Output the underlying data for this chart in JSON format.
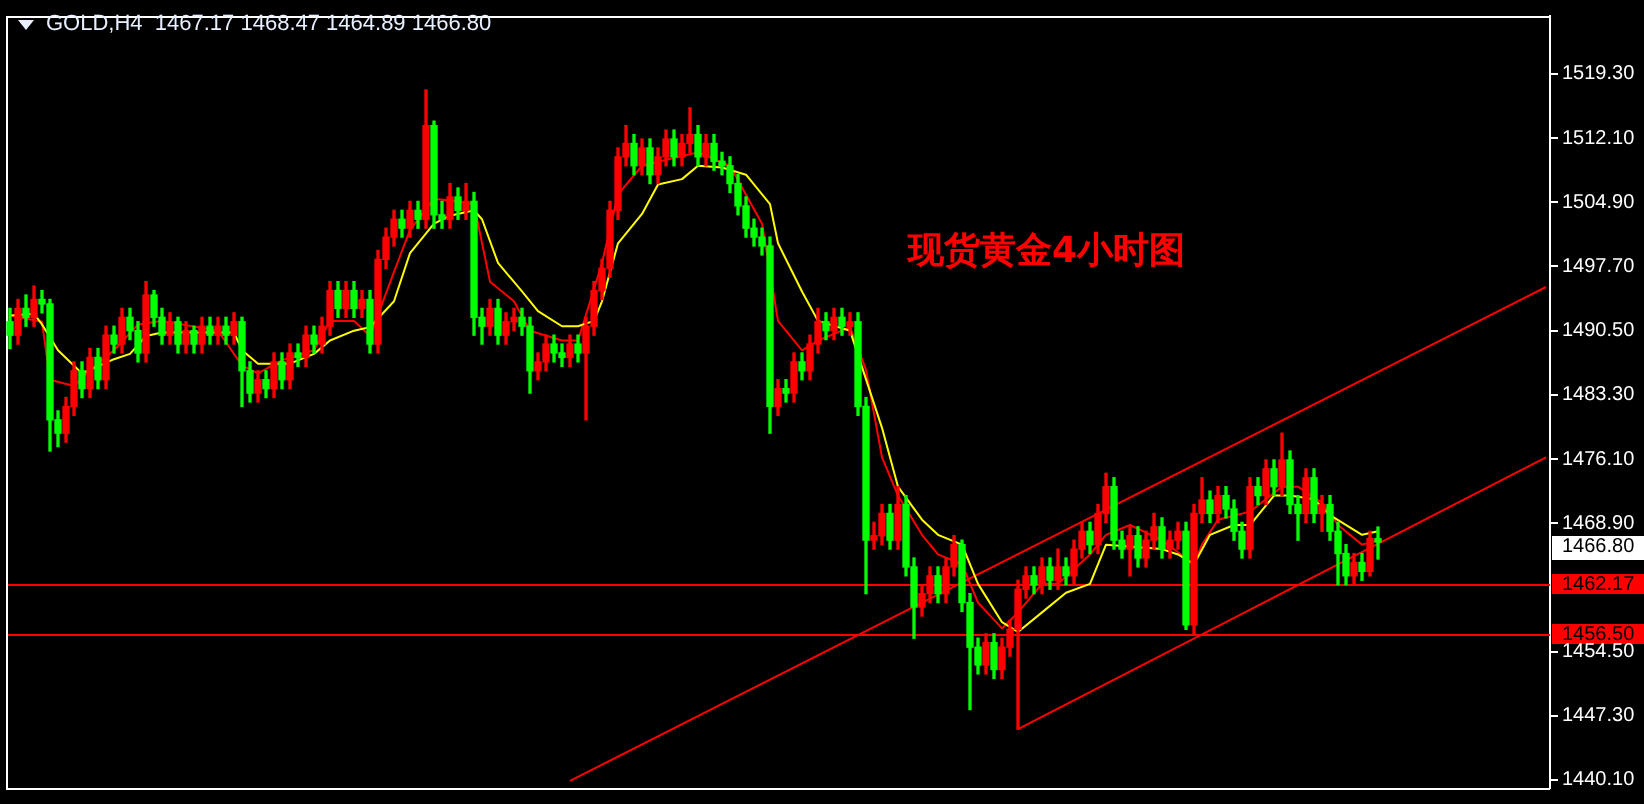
{
  "chart_data": {
    "type": "candlestick",
    "title": "GOLD,H4  1467.17 1468.47 1464.89 1466.80",
    "annotations": [
      "现货黄金4小时图",
      "1466.80"
    ],
    "ylim": [
      1439.2,
      1525.8
    ],
    "yticks": [
      {
        "value": 1519.3,
        "label": "1519.30"
      },
      {
        "value": 1512.1,
        "label": "1512.10"
      },
      {
        "value": 1504.9,
        "label": "1504.90"
      },
      {
        "value": 1497.7,
        "label": "1497.70"
      },
      {
        "value": 1490.5,
        "label": "1490.50"
      },
      {
        "value": 1483.3,
        "label": "1483.30"
      },
      {
        "value": 1476.1,
        "label": "1476.10"
      },
      {
        "value": 1468.9,
        "label": "1468.90"
      },
      {
        "value": 1454.5,
        "label": "1454.50"
      },
      {
        "value": 1447.3,
        "label": "1447.30"
      },
      {
        "value": 1440.1,
        "label": "1440.10"
      }
    ],
    "tick_labels": "y",
    "categories": [
      null,
      null,
      null,
      null,
      null,
      null,
      null,
      null,
      null,
      null,
      null,
      null,
      null,
      null,
      null,
      null,
      null,
      null,
      null,
      null,
      null,
      null,
      null,
      null,
      null,
      null,
      null,
      null,
      null,
      null,
      null,
      null,
      null,
      null,
      null,
      null,
      null,
      null,
      null,
      null,
      null,
      null,
      null,
      null,
      null,
      null,
      null,
      null,
      null,
      null,
      null,
      null,
      null,
      null,
      null,
      null,
      null,
      null,
      null,
      null,
      null,
      null,
      null,
      null,
      null,
      null,
      null,
      null,
      null,
      null,
      null,
      null,
      null,
      null,
      null,
      null,
      null,
      null,
      null,
      null,
      null,
      null,
      null,
      null,
      null,
      null,
      null,
      null,
      null,
      null,
      null,
      null,
      null,
      null,
      null,
      null,
      null,
      null,
      null,
      null,
      null,
      null,
      null,
      null,
      null,
      null,
      null,
      null,
      null,
      null,
      null,
      null,
      null,
      null,
      null,
      null,
      null,
      null,
      null,
      null,
      null,
      null,
      null,
      null,
      null,
      null,
      null,
      null,
      null,
      null,
      null,
      null,
      null,
      null,
      null,
      null,
      null,
      null,
      null,
      null,
      null,
      null,
      null,
      null,
      null,
      null,
      null,
      null,
      null,
      null,
      null,
      null,
      null,
      null,
      null,
      null,
      null,
      null,
      null,
      null,
      null,
      null,
      null,
      null,
      null,
      null,
      null,
      null,
      null,
      null,
      null,
      null,
      null,
      null,
      null,
      null,
      null,
      null,
      null,
      null,
      null,
      null,
      null,
      null,
      null,
      null,
      null,
      null,
      null,
      null,
      null,
      null,
      null
    ],
    "ohlc": [
      [
        1491.5,
        1493,
        1488.5,
        1490
      ],
      [
        1490,
        1494,
        1489,
        1493
      ],
      [
        1493,
        1494.5,
        1491,
        1492
      ],
      [
        1492,
        1495.5,
        1491,
        1494
      ],
      [
        1494,
        1495,
        1492.5,
        1493.5
      ],
      [
        1493.5,
        1494,
        1477,
        1480.5
      ],
      [
        1480.5,
        1481.5,
        1477.5,
        1479
      ],
      [
        1479,
        1483,
        1478,
        1482
      ],
      [
        1482,
        1487,
        1481,
        1486
      ],
      [
        1486,
        1487,
        1483,
        1484
      ],
      [
        1484,
        1488.5,
        1483,
        1487.5
      ],
      [
        1487.5,
        1488.5,
        1484,
        1485
      ],
      [
        1485,
        1491,
        1484,
        1490
      ],
      [
        1490,
        1491,
        1488,
        1489
      ],
      [
        1489,
        1493,
        1488,
        1492
      ],
      [
        1492,
        1493,
        1489.5,
        1490.5
      ],
      [
        1490.5,
        1491.5,
        1487,
        1488
      ],
      [
        1488,
        1496,
        1487,
        1494.5
      ],
      [
        1494.5,
        1495,
        1491,
        1492
      ],
      [
        1492,
        1493,
        1489,
        1490
      ],
      [
        1490,
        1492.5,
        1489,
        1491.5
      ],
      [
        1491.5,
        1492,
        1488,
        1489
      ],
      [
        1489,
        1491.5,
        1488,
        1490.5
      ],
      [
        1490.5,
        1491,
        1488,
        1489
      ],
      [
        1489,
        1492,
        1488,
        1491
      ],
      [
        1491,
        1492,
        1489,
        1490
      ],
      [
        1490,
        1492,
        1489,
        1491
      ],
      [
        1491,
        1492,
        1489,
        1490
      ],
      [
        1490,
        1492.5,
        1489,
        1491.5
      ],
      [
        1491.5,
        1492,
        1482,
        1486
      ],
      [
        1486,
        1487,
        1482.5,
        1483.5
      ],
      [
        1483.5,
        1486,
        1482.5,
        1485
      ],
      [
        1485,
        1486,
        1483,
        1484
      ],
      [
        1484,
        1488,
        1483,
        1487
      ],
      [
        1487,
        1488,
        1484,
        1485
      ],
      [
        1485,
        1489,
        1484,
        1488
      ],
      [
        1488,
        1489,
        1486.5,
        1487.5
      ],
      [
        1487.5,
        1491,
        1486.5,
        1490
      ],
      [
        1490,
        1491,
        1488,
        1489
      ],
      [
        1489,
        1492,
        1488,
        1491
      ],
      [
        1491,
        1496,
        1490,
        1495
      ],
      [
        1495,
        1496,
        1492,
        1493
      ],
      [
        1493,
        1496,
        1492,
        1495
      ],
      [
        1495,
        1496,
        1492,
        1493
      ],
      [
        1493,
        1495,
        1492,
        1494
      ],
      [
        1494,
        1495,
        1488,
        1489
      ],
      [
        1489,
        1499.5,
        1488,
        1498.5
      ],
      [
        1498.5,
        1502,
        1497.5,
        1501
      ],
      [
        1501,
        1504,
        1500,
        1503
      ],
      [
        1503,
        1504,
        1501,
        1502
      ],
      [
        1502,
        1505,
        1501,
        1504
      ],
      [
        1504,
        1505,
        1502,
        1503
      ],
      [
        1503,
        1517.5,
        1502,
        1513.5
      ],
      [
        1513.5,
        1514,
        1502,
        1503.5
      ],
      [
        1503.5,
        1505,
        1502,
        1503
      ],
      [
        1503,
        1507,
        1502,
        1505.5
      ],
      [
        1505.5,
        1506.5,
        1503,
        1504
      ],
      [
        1504,
        1507,
        1503,
        1505
      ],
      [
        1505,
        1506,
        1490,
        1492
      ],
      [
        1492,
        1493,
        1489,
        1491
      ],
      [
        1491,
        1494,
        1490,
        1493
      ],
      [
        1493,
        1494,
        1489,
        1490
      ],
      [
        1490,
        1492.5,
        1489,
        1491.5
      ],
      [
        1491.5,
        1493,
        1490.5,
        1492
      ],
      [
        1492,
        1493,
        1490,
        1491
      ],
      [
        1491,
        1492,
        1483.5,
        1486
      ],
      [
        1486,
        1488,
        1485,
        1487
      ],
      [
        1487,
        1490,
        1486,
        1489
      ],
      [
        1489,
        1490,
        1487,
        1488
      ],
      [
        1488,
        1489,
        1486.5,
        1487.5
      ],
      [
        1487.5,
        1490,
        1486.5,
        1489
      ],
      [
        1489,
        1490,
        1487,
        1488
      ],
      [
        1488,
        1492,
        1480.5,
        1491
      ],
      [
        1491,
        1496,
        1490,
        1495
      ],
      [
        1495,
        1498.5,
        1494,
        1497.5
      ],
      [
        1497.5,
        1505,
        1496.5,
        1504
      ],
      [
        1504,
        1511,
        1503,
        1510
      ],
      [
        1510,
        1513.5,
        1509,
        1511.5
      ],
      [
        1511.5,
        1512.5,
        1508,
        1509
      ],
      [
        1509,
        1512,
        1508,
        1511
      ],
      [
        1511,
        1512,
        1507,
        1508
      ],
      [
        1508,
        1511,
        1507,
        1510
      ],
      [
        1510,
        1513,
        1509,
        1512
      ],
      [
        1512,
        1513,
        1509,
        1510
      ],
      [
        1510,
        1512.5,
        1509,
        1511.5
      ],
      [
        1511.5,
        1515.5,
        1510.5,
        1512.5
      ],
      [
        1512.5,
        1513.5,
        1509,
        1510
      ],
      [
        1510,
        1512.5,
        1509,
        1511.5
      ],
      [
        1511.5,
        1512.5,
        1508.5,
        1509.5
      ],
      [
        1509.5,
        1510.5,
        1508,
        1509
      ],
      [
        1509,
        1510,
        1506,
        1507
      ],
      [
        1507,
        1508,
        1503.5,
        1504.5
      ],
      [
        1504.5,
        1505.5,
        1501,
        1502
      ],
      [
        1502,
        1503,
        1500,
        1501
      ],
      [
        1501,
        1502,
        1499,
        1500
      ],
      [
        1500,
        1501,
        1479,
        1482
      ],
      [
        1482,
        1485,
        1481,
        1484
      ],
      [
        1484,
        1485,
        1482.5,
        1483.5
      ],
      [
        1483.5,
        1488,
        1482.5,
        1487
      ],
      [
        1487,
        1488,
        1485,
        1486
      ],
      [
        1486,
        1490,
        1485,
        1489
      ],
      [
        1489,
        1493,
        1488,
        1491.5
      ],
      [
        1491.5,
        1492.5,
        1489.5,
        1490.5
      ],
      [
        1490.5,
        1493,
        1489.5,
        1492
      ],
      [
        1492,
        1493,
        1490,
        1491
      ],
      [
        1491,
        1492.5,
        1490,
        1491.5
      ],
      [
        1491.5,
        1492.5,
        1481,
        1482
      ],
      [
        1482,
        1483,
        1461,
        1467
      ],
      [
        1467,
        1469,
        1466,
        1467.5
      ],
      [
        1467.5,
        1471,
        1466.5,
        1470
      ],
      [
        1470,
        1471,
        1466,
        1467
      ],
      [
        1467,
        1473,
        1466,
        1471
      ],
      [
        1471,
        1472,
        1463,
        1464
      ],
      [
        1464,
        1465,
        1456,
        1459.5
      ],
      [
        1459.5,
        1462,
        1458.5,
        1461
      ],
      [
        1461,
        1464,
        1460,
        1463
      ],
      [
        1463,
        1464,
        1460,
        1461
      ],
      [
        1461,
        1465,
        1460,
        1464
      ],
      [
        1464,
        1467.5,
        1463,
        1466.5
      ],
      [
        1466.5,
        1467,
        1459,
        1460
      ],
      [
        1460,
        1461,
        1448,
        1455
      ],
      [
        1455,
        1456,
        1452,
        1453
      ],
      [
        1453,
        1456.5,
        1452,
        1455.5
      ],
      [
        1455.5,
        1456.5,
        1451.5,
        1452.5
      ],
      [
        1452.5,
        1456,
        1451.5,
        1455
      ],
      [
        1455,
        1458,
        1454,
        1457
      ],
      [
        1457,
        1462.5,
        1445.8,
        1461.5
      ],
      [
        1461.5,
        1464,
        1460.5,
        1463
      ],
      [
        1463,
        1464,
        1461,
        1462
      ],
      [
        1462,
        1465,
        1461,
        1464
      ],
      [
        1464,
        1465,
        1461.5,
        1462.5
      ],
      [
        1462.5,
        1466,
        1461.5,
        1464
      ],
      [
        1464,
        1465,
        1462,
        1463
      ],
      [
        1463,
        1467,
        1462,
        1466
      ],
      [
        1466,
        1469,
        1465,
        1468
      ],
      [
        1468,
        1469,
        1465.5,
        1466.5
      ],
      [
        1466.5,
        1471,
        1465.5,
        1470
      ],
      [
        1470,
        1474.5,
        1469,
        1473
      ],
      [
        1473,
        1474,
        1466,
        1467
      ],
      [
        1467,
        1468,
        1465,
        1466
      ],
      [
        1466,
        1468.5,
        1463,
        1467.5
      ],
      [
        1467.5,
        1468.5,
        1464,
        1465
      ],
      [
        1465,
        1468,
        1464,
        1467
      ],
      [
        1467,
        1470,
        1466,
        1468.5
      ],
      [
        1468.5,
        1469.5,
        1465,
        1466
      ],
      [
        1466,
        1468,
        1465,
        1467
      ],
      [
        1467,
        1469,
        1466,
        1468
      ],
      [
        1468,
        1469,
        1457,
        1457.5
      ],
      [
        1457.5,
        1471,
        1456.5,
        1470
      ],
      [
        1470,
        1474,
        1469,
        1471.5
      ],
      [
        1471.5,
        1472.5,
        1469,
        1470
      ],
      [
        1470,
        1473,
        1469,
        1472
      ],
      [
        1472,
        1473,
        1469.5,
        1470.5
      ],
      [
        1470.5,
        1471.5,
        1467,
        1468
      ],
      [
        1468,
        1469,
        1465,
        1466
      ],
      [
        1466,
        1474,
        1465,
        1473
      ],
      [
        1473,
        1474,
        1471,
        1472
      ],
      [
        1472,
        1476,
        1471,
        1475
      ],
      [
        1475,
        1476,
        1472,
        1473
      ],
      [
        1473,
        1479,
        1472,
        1476
      ],
      [
        1476,
        1477,
        1470,
        1471
      ],
      [
        1471,
        1472,
        1467,
        1470
      ],
      [
        1470,
        1475,
        1469,
        1474
      ],
      [
        1474,
        1475,
        1469,
        1470
      ],
      [
        1470,
        1472,
        1468,
        1471
      ],
      [
        1471,
        1472,
        1467,
        1468
      ],
      [
        1468,
        1469,
        1462,
        1465.5
      ],
      [
        1465.5,
        1466.5,
        1462,
        1463
      ],
      [
        1463,
        1465.5,
        1462,
        1464.5
      ],
      [
        1464.5,
        1465.5,
        1462.5,
        1463.5
      ],
      [
        1463.5,
        1468,
        1463,
        1467.2
      ],
      [
        1467.17,
        1468.47,
        1464.89,
        1466.8
      ],
      null,
      null,
      null,
      null,
      null,
      null,
      null,
      null,
      null,
      null,
      null,
      null,
      null,
      null,
      null,
      null,
      null,
      null,
      null,
      null,
      null
    ],
    "colors": [
      "#00ff00",
      "#ff0000",
      "#00ff00",
      "#ff0000",
      "#00ff00",
      "#00ff00",
      "#00ff00",
      "#ff0000",
      "#ff0000",
      "#00ff00",
      "#ff0000",
      "#00ff00",
      "#ff0000",
      "#00ff00",
      "#ff0000",
      "#00ff00",
      "#00ff00",
      "#ff0000",
      "#00ff00",
      "#00ff00",
      "#ff0000",
      "#00ff00",
      "#ff0000",
      "#00ff00",
      "#ff0000",
      "#00ff00",
      "#ff0000",
      "#00ff00",
      "#ff0000",
      "#00ff00",
      "#00ff00",
      "#ff0000",
      "#00ff00",
      "#ff0000",
      "#00ff00",
      "#ff0000",
      "#00ff00",
      "#ff0000",
      "#00ff00",
      "#ff0000",
      "#ff0000",
      "#00ff00",
      "#ff0000",
      "#00ff00",
      "#ff0000",
      "#00ff00",
      "#ff0000",
      "#ff0000",
      "#ff0000",
      "#00ff00",
      "#ff0000",
      "#00ff00",
      "#ff0000",
      "#00ff00",
      "#00ff00",
      "#ff0000",
      "#00ff00",
      "#ff0000",
      "#00ff00",
      "#00ff00",
      "#ff0000",
      "#00ff00",
      "#ff0000",
      "#ff0000",
      "#00ff00",
      "#00ff00",
      "#ff0000",
      "#ff0000",
      "#00ff00",
      "#00ff00",
      "#ff0000",
      "#00ff00",
      "#ff0000",
      "#ff0000",
      "#ff0000",
      "#ff0000",
      "#ff0000",
      "#ff0000",
      "#00ff00",
      "#ff0000",
      "#00ff00",
      "#ff0000",
      "#ff0000",
      "#00ff00",
      "#ff0000",
      "#ff0000",
      "#00ff00",
      "#ff0000",
      "#00ff00",
      "#00ff00",
      "#00ff00",
      "#00ff00",
      "#00ff00",
      "#00ff00",
      "#00ff00",
      "#00ff00",
      "#ff0000",
      "#00ff00",
      "#ff0000",
      "#00ff00",
      "#ff0000",
      "#ff0000",
      "#00ff00",
      "#ff0000",
      "#00ff00",
      "#ff0000",
      "#00ff00",
      "#00ff00",
      "#ff0000",
      "#ff0000",
      "#00ff00",
      "#ff0000",
      "#00ff00",
      "#00ff00",
      "#ff0000",
      "#ff0000",
      "#00ff00",
      "#ff0000",
      "#ff0000",
      "#00ff00",
      "#00ff00",
      "#00ff00",
      "#ff0000",
      "#00ff00",
      "#ff0000",
      "#ff0000",
      "#ff0000",
      "#ff0000",
      "#00ff00",
      "#ff0000",
      "#00ff00",
      "#ff0000",
      "#00ff00",
      "#ff0000",
      "#ff0000",
      "#00ff00",
      "#ff0000",
      "#ff0000",
      "#00ff00",
      "#00ff00",
      "#ff0000",
      "#00ff00",
      "#ff0000",
      "#ff0000",
      "#00ff00",
      "#ff0000",
      "#ff0000",
      "#00ff00",
      "#ff0000",
      "#ff0000",
      "#00ff00",
      "#ff0000",
      "#00ff00",
      "#00ff00",
      "#00ff00",
      "#ff0000",
      "#00ff00",
      "#ff0000",
      "#00ff00",
      "#ff0000",
      "#00ff00",
      "#00ff00",
      "#ff0000",
      "#00ff00",
      "#ff0000",
      "#00ff00",
      "#00ff00",
      "#00ff00",
      "#ff0000",
      "#00ff00",
      "#ff0000",
      "#00ff00",
      null,
      null,
      null,
      null,
      null,
      null,
      null,
      null,
      null,
      null,
      null,
      null,
      null,
      null,
      null,
      null,
      null,
      null,
      null,
      null,
      null
    ],
    "series": [
      {
        "type": "line",
        "color": "#ffff00",
        "values": [
          1492.2,
          null,
          null,
          1492.4,
          1491.2,
          null,
          1488.3,
          null,
          null,
          1485.7,
          null,
          null,
          null,
          1487.3,
          null,
          1487.9,
          null,
          1489.9,
          null,
          1490.3,
          null,
          null,
          null,
          null,
          null,
          null,
          null,
          null,
          1490.3,
          1488.3,
          null,
          1486.8,
          null,
          null,
          null,
          1486.8,
          null,
          null,
          1487.9,
          null,
          1489.4,
          null,
          null,
          1490.5,
          null,
          1490.9,
          null,
          null,
          1493.8,
          null,
          1499.2,
          null,
          null,
          1502.5,
          null,
          1503.4,
          null,
          null,
          1504,
          1503,
          null,
          1498.1,
          null,
          null,
          1494.9,
          null,
          1492.7,
          null,
          null,
          1491,
          null,
          1491,
          null,
          1491.6,
          1493.8,
          null,
          1500.3,
          null,
          null,
          1503.6,
          null,
          1506.9,
          null,
          null,
          1507.5,
          null,
          1509,
          null,
          null,
          1508.8,
          null,
          null,
          1508,
          null,
          null,
          1504.7,
          1500.3,
          null,
          null,
          1494.9,
          null,
          1491.6,
          null,
          null,
          null,
          1490.5,
          null,
          null,
          null,
          1479.6,
          null,
          1473,
          null,
          null,
          1469.3,
          null,
          1467.6,
          null,
          null,
          1466.5,
          null,
          1462.1,
          null,
          null,
          1457.8,
          null,
          1456.7,
          null,
          null,
          1458.9,
          null,
          null,
          1461.1,
          null,
          null,
          1462.1,
          null,
          1466.5,
          null,
          null,
          null,
          null,
          null,
          null,
          1466,
          null,
          1465.4,
          null,
          1464.3,
          null,
          1467.6,
          null,
          null,
          1468.7,
          null,
          1468.7,
          null,
          null,
          1472,
          null,
          1472,
          null,
          null,
          1471.6,
          null,
          1469.8,
          null,
          null,
          null,
          1467.6,
          null,
          1468,
          null,
          null,
          null,
          null,
          null,
          null,
          null,
          null,
          null,
          null,
          null,
          null,
          null,
          null,
          null,
          null,
          null,
          null,
          null,
          null,
          null
        ]
      },
      {
        "type": "line",
        "color": "#ff0000",
        "values": [
          1492.2,
          null,
          null,
          null,
          1491.5,
          1485,
          null,
          null,
          1484.3,
          null,
          1486.1,
          null,
          null,
          1488.3,
          null,
          null,
          1491.2,
          null,
          null,
          1491.6,
          null,
          null,
          null,
          null,
          null,
          null,
          1490.5,
          null,
          null,
          1486.6,
          null,
          1485.7,
          null,
          null,
          1487.2,
          null,
          null,
          null,
          1488.3,
          null,
          1491.6,
          null,
          null,
          1491.6,
          null,
          1489.9,
          null,
          null,
          1497.1,
          null,
          1501.8,
          null,
          null,
          1505.3,
          null,
          1505.1,
          null,
          null,
          1504.7,
          null,
          1496,
          null,
          null,
          1493.8,
          null,
          1490.5,
          null,
          null,
          null,
          1489.4,
          null,
          1489.4,
          null,
          null,
          1498.1,
          null,
          1505.8,
          null,
          null,
          1509,
          null,
          null,
          null,
          null,
          1510.1,
          null,
          1510.5,
          null,
          null,
          null,
          1509,
          null,
          null,
          null,
          1502.5,
          null,
          1491.6,
          null,
          null,
          1488.3,
          null,
          1489.4,
          null,
          null,
          null,
          1490.9,
          null,
          1486.1,
          null,
          1476.3,
          null,
          1472,
          null,
          null,
          1467.6,
          null,
          1465.4,
          null,
          null,
          1464.3,
          null,
          1460,
          null,
          null,
          1457.1,
          null,
          1458.9,
          null,
          null,
          1462.1,
          null,
          1462.1,
          null,
          null,
          null,
          1465.4,
          null,
          1467.6,
          null,
          null,
          1468.7,
          null,
          null,
          null,
          1467,
          null,
          null,
          null,
          1464.3,
          1466.5,
          null,
          1469.3,
          null,
          null,
          null,
          1470.2,
          null,
          null,
          null,
          1473,
          null,
          1473,
          null,
          null,
          1471.2,
          null,
          1468.7,
          null,
          null,
          1466.5,
          null,
          1467,
          null,
          null,
          null,
          null,
          null,
          null,
          null,
          null,
          null,
          null,
          null,
          null,
          null,
          null,
          null,
          null,
          null,
          null,
          null,
          null,
          null
        ]
      },
      {
        "type": "line",
        "color": "#ff0000",
        "values": [
          null,
          null,
          null,
          null,
          null,
          null,
          null,
          null,
          null,
          null,
          null,
          null,
          null,
          null,
          null,
          null,
          null,
          null,
          null,
          null,
          null,
          null,
          null,
          null,
          null,
          null,
          null,
          null,
          null,
          null,
          null,
          null,
          null,
          null,
          null,
          null,
          null,
          null,
          null,
          null,
          null,
          null,
          null,
          null,
          null,
          null,
          null,
          null,
          null,
          null,
          null,
          null,
          null,
          null,
          null,
          null,
          null,
          null,
          null,
          null,
          null,
          null,
          null,
          null,
          null,
          null,
          null,
          null,
          null,
          null,
          1440,
          null,
          null,
          null,
          null,
          null,
          null,
          null,
          null,
          null,
          null,
          null,
          null,
          null,
          null,
          null,
          null,
          null,
          null,
          null,
          null,
          null,
          null,
          null,
          null,
          null,
          null,
          null,
          null,
          null,
          null,
          null,
          null,
          null,
          null,
          null,
          null,
          null,
          null,
          null,
          null,
          null,
          null,
          null,
          null,
          null,
          null,
          null,
          null,
          null,
          null,
          null,
          null,
          null,
          null,
          null,
          null,
          null,
          null,
          null,
          null,
          null,
          null,
          null,
          null,
          null,
          null,
          null,
          null,
          null,
          null,
          null,
          null,
          null,
          null,
          null,
          null,
          null,
          null,
          null,
          null,
          null,
          null,
          null,
          null,
          null,
          null,
          null,
          null,
          null,
          null,
          null,
          null,
          null,
          null,
          null,
          null,
          null,
          null,
          null,
          null,
          null,
          null,
          null,
          null,
          null,
          null,
          null,
          null,
          null,
          null,
          null,
          null,
          null,
          null,
          null,
          null,
          null,
          null,
          null,
          null,
          null,
          1495.4
        ]
      },
      {
        "type": "line",
        "color": "#ff0000",
        "values": [
          null,
          null,
          null,
          null,
          null,
          null,
          null,
          null,
          null,
          null,
          null,
          null,
          null,
          null,
          null,
          null,
          null,
          null,
          null,
          null,
          null,
          null,
          null,
          null,
          null,
          null,
          null,
          null,
          null,
          null,
          null,
          null,
          null,
          null,
          null,
          null,
          null,
          null,
          null,
          null,
          null,
          null,
          null,
          null,
          null,
          null,
          null,
          null,
          null,
          null,
          null,
          null,
          null,
          null,
          null,
          null,
          null,
          null,
          null,
          null,
          null,
          null,
          null,
          null,
          null,
          null,
          null,
          null,
          null,
          null,
          null,
          null,
          null,
          null,
          null,
          null,
          null,
          null,
          null,
          null,
          null,
          null,
          null,
          null,
          null,
          null,
          null,
          null,
          null,
          null,
          null,
          null,
          null,
          null,
          null,
          null,
          null,
          null,
          null,
          null,
          null,
          null,
          null,
          null,
          null,
          null,
          null,
          null,
          null,
          null,
          null,
          null,
          null,
          null,
          null,
          null,
          null,
          null,
          null,
          null,
          null,
          null,
          null,
          null,
          null,
          null,
          1445.8,
          null,
          null,
          null,
          null,
          null,
          null,
          null,
          null,
          null,
          null,
          null,
          null,
          null,
          null,
          null,
          null,
          null,
          null,
          null,
          null,
          null,
          null,
          null,
          null,
          null,
          null,
          null,
          null,
          null,
          null,
          null,
          null,
          null,
          null,
          null,
          null,
          null,
          null,
          null,
          null,
          null,
          null,
          null,
          null,
          null,
          null,
          null,
          null,
          null,
          null,
          null,
          null,
          null,
          null,
          null,
          null,
          null,
          null,
          null,
          null,
          null,
          null,
          null,
          null,
          null,
          1476.3
        ]
      }
    ],
    "ref_lines": [
      {
        "axis": "y",
        "value": 1462.17,
        "label": "1462.17",
        "color": "#ff0000"
      },
      {
        "axis": "y",
        "value": 1456.5,
        "label": "1456.50",
        "color": "#ff0000"
      }
    ]
  }
}
